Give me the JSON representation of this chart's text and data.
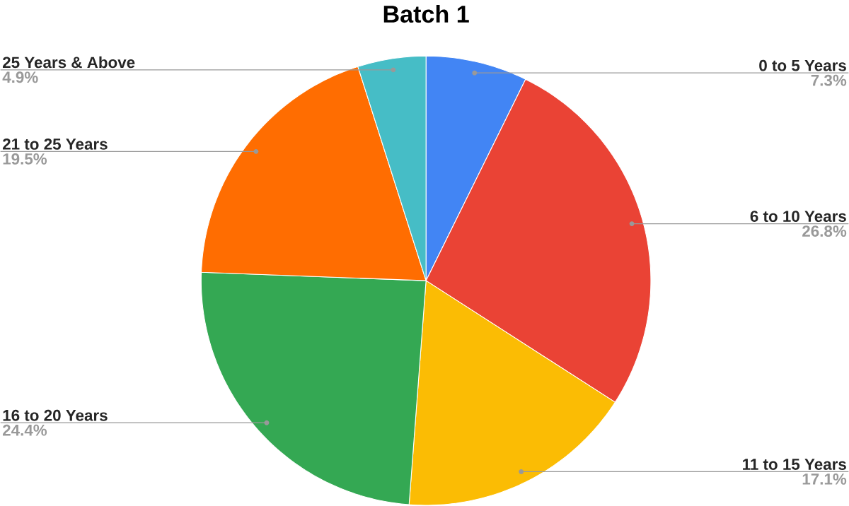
{
  "chart_data": {
    "type": "pie",
    "title": "Batch 1",
    "categories": [
      "0 to 5 Years",
      "6 to 10 Years",
      "11 to 15 Years",
      "16 to 20 Years",
      "21 to 25 Years",
      "25 Years & Above"
    ],
    "values": [
      7.3,
      26.8,
      17.1,
      24.4,
      19.5,
      4.9
    ],
    "colors": [
      "#4285f4",
      "#ea4335",
      "#fbbc04",
      "#34a853",
      "#ff6d01",
      "#46bdc6"
    ],
    "value_labels": [
      "7.3%",
      "26.8%",
      "17.1%",
      "24.4%",
      "19.5%",
      "4.9%"
    ]
  }
}
